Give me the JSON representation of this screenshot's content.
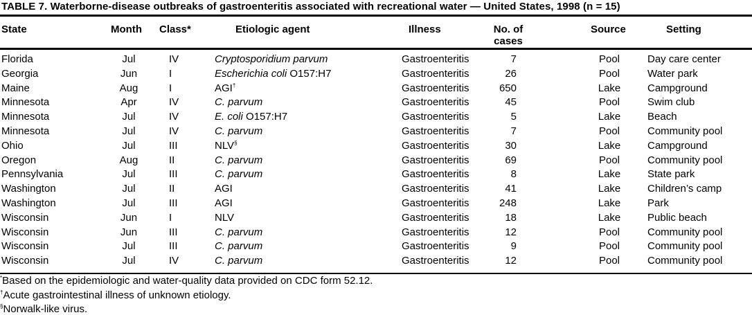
{
  "title": "TABLE 7. Waterborne-disease outbreaks of gastroenteritis associated with recreational water — United States, 1998 (n = 15)",
  "headers": {
    "state": "State",
    "month": "Month",
    "class": "Class*",
    "agent": "Etiologic  agent",
    "illness": "Illness",
    "cases_1": "No. of",
    "cases_2": "cases",
    "source": "Source",
    "setting": "Setting"
  },
  "rows": [
    {
      "state": "Florida",
      "month": "Jul",
      "class": "IV",
      "agent_italic": "Cryptosporidium  parvum",
      "agent_plain": "",
      "agent_sup": "",
      "illness": "Gastroenteritis",
      "cases": "7",
      "source": "Pool",
      "setting": "Day care center"
    },
    {
      "state": "Georgia",
      "month": "Jun",
      "class": "I",
      "agent_italic": "Escherichia  coli",
      "agent_plain": " O157:H7",
      "agent_sup": "",
      "illness": "Gastroenteritis",
      "cases": "26",
      "source": "Pool",
      "setting": "Water park"
    },
    {
      "state": "Maine",
      "month": "Aug",
      "class": "I",
      "agent_italic": "",
      "agent_plain": "AGI",
      "agent_sup": "†",
      "illness": "Gastroenteritis",
      "cases": "650",
      "source": "Lake",
      "setting": "Campground"
    },
    {
      "state": "Minnesota",
      "month": "Apr",
      "class": "IV",
      "agent_italic": "C. parvum",
      "agent_plain": "",
      "agent_sup": "",
      "illness": "Gastroenteritis",
      "cases": "45",
      "source": "Pool",
      "setting": "Swim club"
    },
    {
      "state": "Minnesota",
      "month": "Jul",
      "class": "IV",
      "agent_italic": "E. coli",
      "agent_plain": " O157:H7",
      "agent_sup": "",
      "illness": "Gastroenteritis",
      "cases": "5",
      "source": "Lake",
      "setting": "Beach"
    },
    {
      "state": "Minnesota",
      "month": "Jul",
      "class": "IV",
      "agent_italic": "C. parvum",
      "agent_plain": "",
      "agent_sup": "",
      "illness": "Gastroenteritis",
      "cases": "7",
      "source": "Pool",
      "setting": "Community pool"
    },
    {
      "state": "Ohio",
      "month": "Jul",
      "class": "III",
      "agent_italic": "",
      "agent_plain": "NLV",
      "agent_sup": "§",
      "illness": "Gastroenteritis",
      "cases": "30",
      "source": "Lake",
      "setting": "Campground"
    },
    {
      "state": "Oregon",
      "month": "Aug",
      "class": "II",
      "agent_italic": "C. parvum",
      "agent_plain": "",
      "agent_sup": "",
      "illness": "Gastroenteritis",
      "cases": "69",
      "source": "Pool",
      "setting": "Community pool"
    },
    {
      "state": "Pennsylvania",
      "month": "Jul",
      "class": "III",
      "agent_italic": "C. parvum",
      "agent_plain": "",
      "agent_sup": "",
      "illness": "Gastroenteritis",
      "cases": "8",
      "source": "Lake",
      "setting": "State park"
    },
    {
      "state": "Washington",
      "month": "Jul",
      "class": "II",
      "agent_italic": "",
      "agent_plain": "AGI",
      "agent_sup": "",
      "illness": "Gastroenteritis",
      "cases": "41",
      "source": "Lake",
      "setting": "Children’s camp"
    },
    {
      "state": "Washington",
      "month": "Jul",
      "class": "III",
      "agent_italic": "",
      "agent_plain": "AGI",
      "agent_sup": "",
      "illness": "Gastroenteritis",
      "cases": "248",
      "source": "Lake",
      "setting": "Park"
    },
    {
      "state": "Wisconsin",
      "month": "Jun",
      "class": "I",
      "agent_italic": "",
      "agent_plain": "NLV",
      "agent_sup": "",
      "illness": "Gastroenteritis",
      "cases": "18",
      "source": "Lake",
      "setting": "Public  beach"
    },
    {
      "state": "Wisconsin",
      "month": "Jun",
      "class": "III",
      "agent_italic": "C. parvum",
      "agent_plain": "",
      "agent_sup": "",
      "illness": "Gastroenteritis",
      "cases": "12",
      "source": "Pool",
      "setting": "Community pool"
    },
    {
      "state": "Wisconsin",
      "month": "Jul",
      "class": "III",
      "agent_italic": "C. parvum",
      "agent_plain": "",
      "agent_sup": "",
      "illness": "Gastroenteritis",
      "cases": "9",
      "source": "Pool",
      "setting": "Community pool"
    },
    {
      "state": "Wisconsin",
      "month": "Jul",
      "class": "IV",
      "agent_italic": "C. parvum",
      "agent_plain": "",
      "agent_sup": "",
      "illness": "Gastroenteritis",
      "cases": "12",
      "source": "Pool",
      "setting": "Community pool"
    }
  ],
  "footnotes": [
    {
      "mark": "*",
      "text": "Based on the epidemiologic and water-quality data provided on CDC form 52.12."
    },
    {
      "mark": "†",
      "text": "Acute gastrointestinal illness of unknown etiology."
    },
    {
      "mark": "§",
      "text": "Norwalk-like virus."
    }
  ]
}
